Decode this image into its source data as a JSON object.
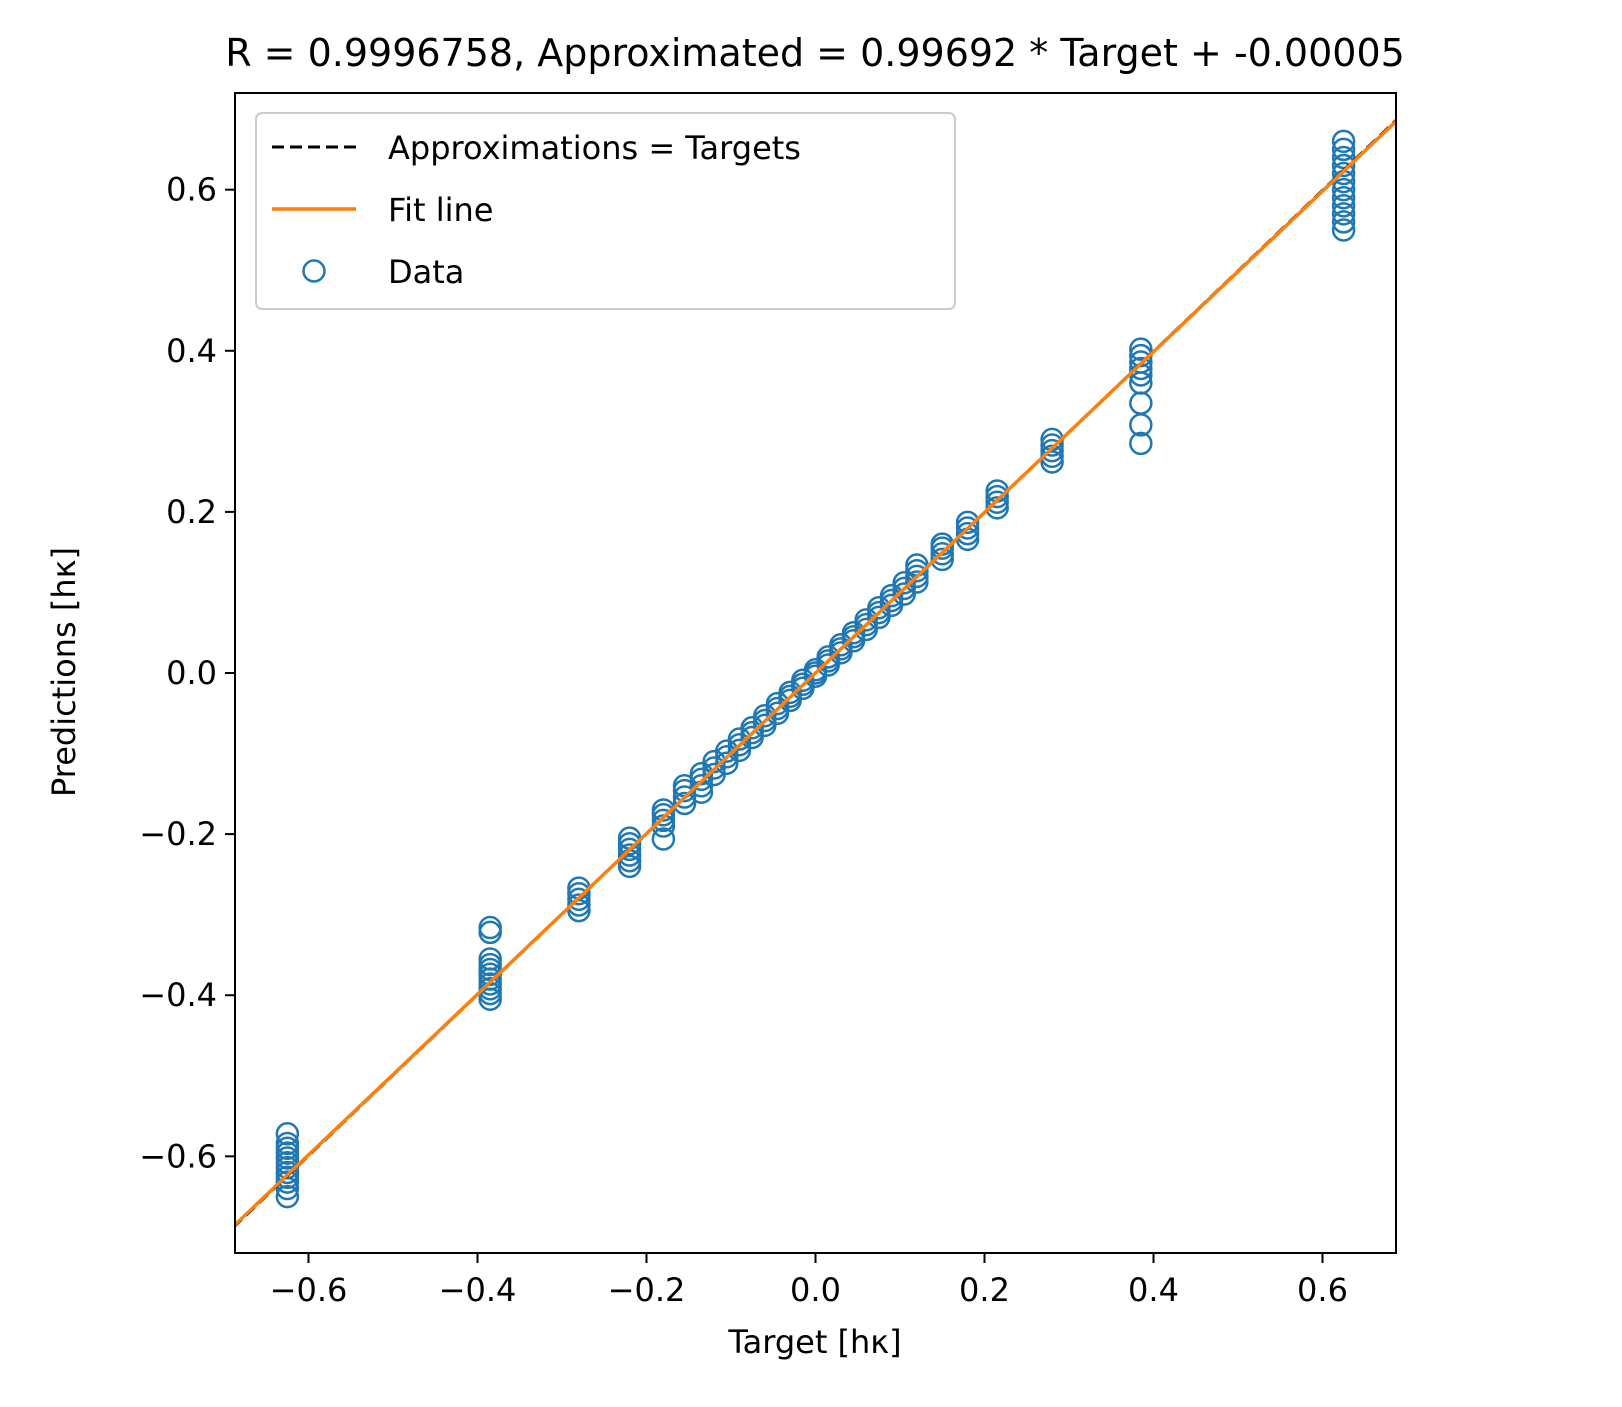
{
  "chart_data": {
    "type": "scatter",
    "title": "R = 0.9996758, Approximated = 0.99692 * Target + -0.00005",
    "xlabel": "Target [hκ]",
    "ylabel": "Predictions [hκ]",
    "xlim": [
      -0.687,
      0.687
    ],
    "ylim": [
      -0.72,
      0.72
    ],
    "xticks": [
      -0.6,
      -0.4,
      -0.2,
      0.0,
      0.2,
      0.4,
      0.6
    ],
    "yticks": [
      -0.6,
      -0.4,
      -0.2,
      0.0,
      0.2,
      0.4,
      0.6
    ],
    "xtick_labels": [
      "−0.6",
      "−0.4",
      "−0.2",
      "0.0",
      "0.2",
      "0.4",
      "0.6"
    ],
    "ytick_labels": [
      "−0.6",
      "−0.4",
      "−0.2",
      "0.0",
      "0.2",
      "0.4",
      "0.6"
    ],
    "grid": false,
    "legend_position": "top-left",
    "legend": [
      {
        "label": "Approximations = Targets",
        "style": "dashed-line",
        "color": "#000000"
      },
      {
        "label": "Fit line",
        "style": "line",
        "color": "#ff7f0e"
      },
      {
        "label": "Data",
        "style": "open-circle",
        "color": "#1f77b4"
      }
    ],
    "fit": {
      "slope": 0.99692,
      "intercept": -5e-05
    },
    "series": [
      {
        "name": "Data",
        "clusters": [
          {
            "x": -0.625,
            "y": [
              -0.65,
              -0.64,
              -0.632,
              -0.626,
              -0.62,
              -0.614,
              -0.608,
              -0.602,
              -0.596,
              -0.59,
              -0.584,
              -0.572
            ]
          },
          {
            "x": -0.385,
            "y": [
              -0.405,
              -0.398,
              -0.392,
              -0.386,
              -0.38,
              -0.374,
              -0.368,
              -0.362,
              -0.355,
              -0.322,
              -0.316
            ]
          },
          {
            "x": -0.28,
            "y": [
              -0.295,
              -0.288,
              -0.281,
              -0.274,
              -0.267
            ]
          },
          {
            "x": -0.22,
            "y": [
              -0.24,
              -0.233,
              -0.226,
              -0.219,
              -0.212,
              -0.205
            ]
          },
          {
            "x": -0.18,
            "y": [
              -0.206,
              -0.19,
              -0.183,
              -0.176,
              -0.17
            ]
          },
          {
            "x": -0.155,
            "y": [
              -0.162,
              -0.154,
              -0.146,
              -0.14
            ]
          },
          {
            "x": -0.135,
            "y": [
              -0.148,
              -0.14,
              -0.132,
              -0.125
            ]
          },
          {
            "x": -0.12,
            "y": [
              -0.126,
              -0.118,
              -0.11
            ]
          },
          {
            "x": -0.105,
            "y": [
              -0.112,
              -0.104,
              -0.097
            ]
          },
          {
            "x": -0.09,
            "y": [
              -0.096,
              -0.089,
              -0.082
            ]
          },
          {
            "x": -0.075,
            "y": [
              -0.08,
              -0.074,
              -0.068
            ]
          },
          {
            "x": -0.06,
            "y": [
              -0.065,
              -0.059,
              -0.053
            ]
          },
          {
            "x": -0.045,
            "y": [
              -0.05,
              -0.044,
              -0.038
            ]
          },
          {
            "x": -0.03,
            "y": [
              -0.034,
              -0.029,
              -0.024
            ]
          },
          {
            "x": -0.015,
            "y": [
              -0.019,
              -0.014,
              -0.009
            ]
          },
          {
            "x": 0.0,
            "y": [
              -0.004,
              0.0,
              0.004
            ]
          },
          {
            "x": 0.015,
            "y": [
              0.01,
              0.015,
              0.02
            ]
          },
          {
            "x": 0.03,
            "y": [
              0.025,
              0.03,
              0.035
            ]
          },
          {
            "x": 0.045,
            "y": [
              0.04,
              0.045,
              0.05
            ]
          },
          {
            "x": 0.06,
            "y": [
              0.054,
              0.06,
              0.066
            ]
          },
          {
            "x": 0.075,
            "y": [
              0.069,
              0.075,
              0.081
            ]
          },
          {
            "x": 0.09,
            "y": [
              0.084,
              0.09,
              0.096
            ]
          },
          {
            "x": 0.105,
            "y": [
              0.098,
              0.105,
              0.112
            ]
          },
          {
            "x": 0.12,
            "y": [
              0.113,
              0.12,
              0.127,
              0.134
            ]
          },
          {
            "x": 0.15,
            "y": [
              0.141,
              0.148,
              0.155,
              0.16
            ]
          },
          {
            "x": 0.18,
            "y": [
              0.166,
              0.173,
              0.18,
              0.187
            ]
          },
          {
            "x": 0.215,
            "y": [
              0.205,
              0.212,
              0.219,
              0.226
            ]
          },
          {
            "x": 0.28,
            "y": [
              0.262,
              0.269,
              0.276,
              0.283,
              0.29
            ]
          },
          {
            "x": 0.385,
            "y": [
              0.285,
              0.308,
              0.335,
              0.36,
              0.37,
              0.378,
              0.386,
              0.394,
              0.402
            ]
          },
          {
            "x": 0.625,
            "y": [
              0.55,
              0.56,
              0.57,
              0.58,
              0.59,
              0.6,
              0.61,
              0.62,
              0.63,
              0.64,
              0.65,
              0.66
            ]
          }
        ]
      }
    ]
  }
}
